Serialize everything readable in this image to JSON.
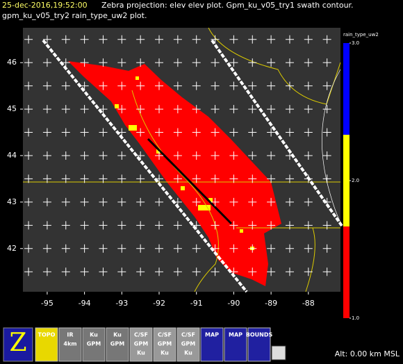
{
  "header": {
    "timestamp": "25-dec-2016,19:52:00",
    "line1": "Zebra projection: elev elev  plot.  Gpm_ku_v05_try1 swath contour.",
    "line2": "gpm_ku_v05_try2 rain_type_uw2  plot."
  },
  "chart_data": {
    "type": "map",
    "xlim": [
      -95.65,
      -87.14
    ],
    "xticks": [
      -95,
      -94,
      -93,
      -92,
      -91,
      -90,
      -89,
      -88
    ],
    "ylim": [
      41.07,
      46.75
    ],
    "yticks": [
      42,
      43,
      44,
      45,
      46
    ],
    "colorbar": {
      "title": "rain_type_uw2",
      "colors": [
        "#ff0000",
        "#ffff00",
        "#0000ff"
      ],
      "lim": [
        1,
        3
      ],
      "ticks": [
        {
          "value": 3,
          "label": "3.0"
        },
        {
          "value": 2,
          "label": "2.0"
        },
        {
          "value": 1,
          "label": "1.0"
        }
      ]
    }
  },
  "toolbar": [
    "TOPO",
    "IR",
    "4km",
    "Ku",
    "GPM",
    "C/SF",
    "GPM",
    "Ku",
    "C/SF",
    "GPM",
    "Ku",
    "C/SF",
    "GPM",
    "Ku",
    "MAP",
    "MAP",
    "BOUNDS"
  ],
  "status": "Alt: 0.00 km MSL"
}
